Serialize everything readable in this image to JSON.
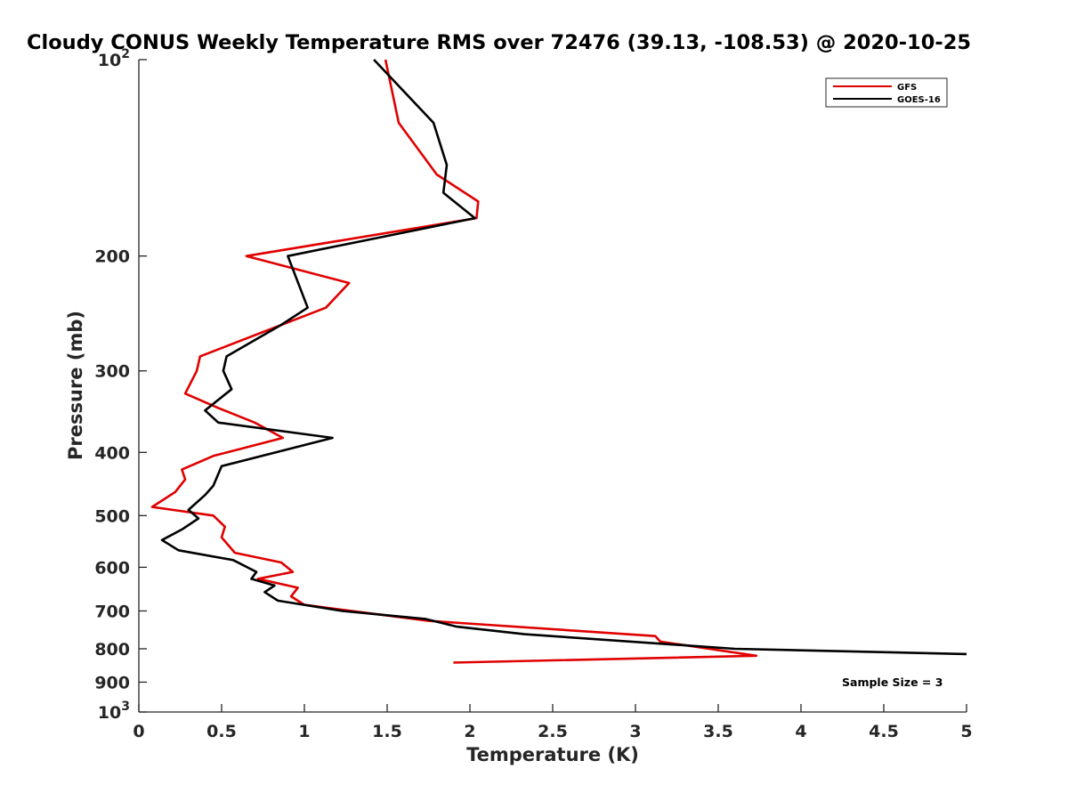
{
  "chart_data": {
    "type": "line",
    "title": "Cloudy CONUS Weekly Temperature RMS over 72476 (39.13, -108.53) @ 2020-10-25",
    "xlabel": "Temperature (K)",
    "ylabel": "Pressure (mb)",
    "xlim": [
      0,
      5
    ],
    "ylim": [
      100,
      1000
    ],
    "y_scale": "log",
    "y_reversed": true,
    "grid": false,
    "legend_position": "top-right",
    "x_ticks": [
      0,
      0.5,
      1,
      1.5,
      2,
      2.5,
      3,
      3.5,
      4,
      4.5,
      5
    ],
    "x_tick_labels": [
      "0",
      "0.5",
      "1",
      "1.5",
      "2",
      "2.5",
      "3",
      "3.5",
      "4",
      "4.5",
      "5"
    ],
    "y_ticks": [
      100,
      200,
      300,
      400,
      500,
      600,
      700,
      800,
      900,
      1000
    ],
    "y_tick_labels": [
      {
        "base": "10",
        "exp": "2"
      },
      {
        "base": "200",
        "exp": ""
      },
      {
        "base": "300",
        "exp": ""
      },
      {
        "base": "400",
        "exp": ""
      },
      {
        "base": "500",
        "exp": ""
      },
      {
        "base": "600",
        "exp": ""
      },
      {
        "base": "700",
        "exp": ""
      },
      {
        "base": "800",
        "exp": ""
      },
      {
        "base": "900",
        "exp": ""
      },
      {
        "base": "10",
        "exp": "3"
      }
    ],
    "annotation": "Sample Size = 3",
    "series": [
      {
        "name": "GFS",
        "color": "#e00000",
        "points": [
          [
            1.49,
            100
          ],
          [
            1.57,
            125
          ],
          [
            1.8,
            150
          ],
          [
            2.05,
            165
          ],
          [
            2.04,
            175
          ],
          [
            0.65,
            200
          ],
          [
            1.27,
            220
          ],
          [
            1.13,
            240
          ],
          [
            0.37,
            285
          ],
          [
            0.35,
            300
          ],
          [
            0.28,
            325
          ],
          [
            0.48,
            342
          ],
          [
            0.7,
            360
          ],
          [
            0.87,
            380
          ],
          [
            0.45,
            405
          ],
          [
            0.26,
            425
          ],
          [
            0.28,
            440
          ],
          [
            0.22,
            460
          ],
          [
            0.08,
            485
          ],
          [
            0.45,
            500
          ],
          [
            0.52,
            520
          ],
          [
            0.5,
            540
          ],
          [
            0.58,
            570
          ],
          [
            0.86,
            590
          ],
          [
            0.93,
            610
          ],
          [
            0.72,
            625
          ],
          [
            0.96,
            645
          ],
          [
            0.92,
            665
          ],
          [
            1.0,
            685
          ],
          [
            1.75,
            725
          ],
          [
            3.12,
            765
          ],
          [
            3.15,
            780
          ],
          [
            3.73,
            820
          ],
          [
            1.9,
            840
          ]
        ]
      },
      {
        "name": "GOES-16",
        "color": "#000000",
        "points": [
          [
            1.42,
            100
          ],
          [
            1.78,
            125
          ],
          [
            1.86,
            145
          ],
          [
            1.84,
            160
          ],
          [
            2.03,
            175
          ],
          [
            0.9,
            200
          ],
          [
            1.02,
            240
          ],
          [
            0.86,
            255
          ],
          [
            0.53,
            285
          ],
          [
            0.51,
            300
          ],
          [
            0.56,
            320
          ],
          [
            0.4,
            345
          ],
          [
            0.48,
            360
          ],
          [
            1.17,
            380
          ],
          [
            0.5,
            420
          ],
          [
            0.45,
            450
          ],
          [
            0.4,
            465
          ],
          [
            0.3,
            490
          ],
          [
            0.36,
            505
          ],
          [
            0.26,
            525
          ],
          [
            0.14,
            545
          ],
          [
            0.24,
            565
          ],
          [
            0.57,
            585
          ],
          [
            0.71,
            610
          ],
          [
            0.68,
            625
          ],
          [
            0.82,
            640
          ],
          [
            0.76,
            655
          ],
          [
            0.84,
            675
          ],
          [
            1.23,
            700
          ],
          [
            1.73,
            720
          ],
          [
            1.92,
            740
          ],
          [
            2.33,
            760
          ],
          [
            3.6,
            800
          ],
          [
            5.0,
            815
          ]
        ]
      }
    ]
  }
}
